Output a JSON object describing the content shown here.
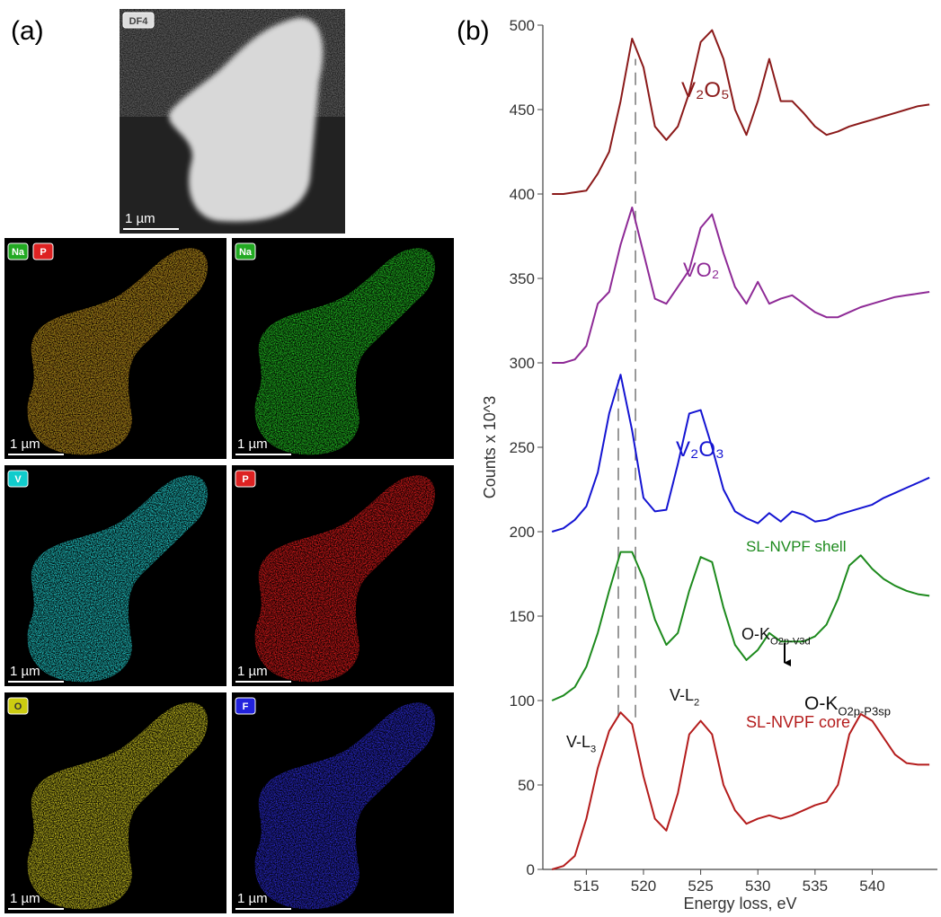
{
  "figure": {
    "panel_a_label": "(a)",
    "df_image": {
      "tag": "DF4",
      "scale": "1 µm"
    },
    "maps": [
      {
        "tags": [
          {
            "text": "Na",
            "color": "#22aa22"
          },
          {
            "text": "P",
            "color": "#dd2222"
          }
        ],
        "colors": [
          "#d03010",
          "#70c020"
        ],
        "scale": "1 µm"
      },
      {
        "tags": [
          {
            "text": "Na",
            "color": "#22aa22"
          }
        ],
        "colors": [
          "#22c022"
        ],
        "scale": "1 µm"
      },
      {
        "tags": [
          {
            "text": "V",
            "color": "#11cccc"
          }
        ],
        "colors": [
          "#22c8c8"
        ],
        "scale": "1 µm"
      },
      {
        "tags": [
          {
            "text": "P",
            "color": "#dd2222"
          }
        ],
        "colors": [
          "#dd1a1a"
        ],
        "scale": "1 µm"
      },
      {
        "tags": [
          {
            "text": "O",
            "color": "#cccc11"
          }
        ],
        "colors": [
          "#c8c020"
        ],
        "scale": "1 µm"
      },
      {
        "tags": [
          {
            "text": "F",
            "color": "#2222dd"
          }
        ],
        "colors": [
          "#2a2ad0"
        ],
        "scale": "1 µm"
      }
    ]
  },
  "chart_data": {
    "type": "line",
    "panel_label": "(b)",
    "x_label": "Energy loss, eV",
    "y_label": "Counts x 10^3",
    "xlim": [
      511.2,
      545.7
    ],
    "ylim": [
      0,
      500
    ],
    "xticks": [
      515,
      520,
      525,
      530,
      535,
      540
    ],
    "yticks": [
      0,
      50,
      100,
      150,
      200,
      250,
      300,
      350,
      400,
      450,
      500
    ],
    "x": [
      512,
      513,
      514,
      515,
      516,
      517,
      518,
      519,
      520,
      521,
      522,
      523,
      524,
      525,
      526,
      527,
      528,
      529,
      530,
      531,
      532,
      533,
      534,
      535,
      536,
      537,
      538,
      539,
      540,
      541,
      542,
      543,
      544,
      545
    ],
    "series": [
      {
        "name": "V₂O₅",
        "color": "#8b1a1a",
        "values": [
          400,
          400,
          401,
          402,
          412,
          425,
          455,
          492,
          475,
          440,
          432,
          440,
          460,
          490,
          497,
          480,
          450,
          435,
          455,
          480,
          455,
          455,
          448,
          440,
          435,
          437,
          440,
          442,
          444,
          446,
          448,
          450,
          452,
          453
        ]
      },
      {
        "name": "VO₂",
        "color": "#8e2a96",
        "values": [
          300,
          300,
          302,
          310,
          335,
          342,
          370,
          392,
          365,
          338,
          335,
          345,
          355,
          380,
          388,
          365,
          345,
          335,
          348,
          335,
          338,
          340,
          335,
          330,
          327,
          327,
          330,
          333,
          335,
          337,
          339,
          340,
          341,
          342
        ]
      },
      {
        "name": "V₂O₃",
        "color": "#1414d2",
        "values": [
          200,
          202,
          207,
          215,
          235,
          270,
          293,
          260,
          220,
          212,
          213,
          240,
          270,
          272,
          250,
          225,
          212,
          208,
          205,
          211,
          206,
          212,
          210,
          206,
          207,
          210,
          212,
          214,
          216,
          220,
          223,
          226,
          229,
          232
        ]
      },
      {
        "name": "SL-NVPF shell",
        "color": "#1d8a1d",
        "values": [
          100,
          103,
          108,
          120,
          140,
          165,
          188,
          188,
          172,
          148,
          133,
          140,
          165,
          185,
          182,
          155,
          133,
          124,
          130,
          140,
          135,
          135,
          135,
          138,
          145,
          160,
          180,
          186,
          178,
          172,
          168,
          165,
          163,
          162
        ]
      },
      {
        "name": "SL-NVPF core",
        "color": "#b41c1c",
        "values": [
          0,
          2,
          8,
          30,
          60,
          82,
          93,
          86,
          55,
          30,
          23,
          45,
          80,
          88,
          80,
          50,
          35,
          27,
          30,
          32,
          30,
          32,
          35,
          38,
          40,
          50,
          80,
          92,
          88,
          78,
          68,
          63,
          62,
          62
        ]
      }
    ],
    "reference_lines": [
      {
        "x": 517.8,
        "y_from": 90,
        "y_to": 290
      },
      {
        "x": 519.3,
        "y_from": 90,
        "y_to": 480
      }
    ],
    "annotations": [
      {
        "text": "V-L",
        "sub": "3"
      },
      {
        "text": "V-L",
        "sub": "2"
      },
      {
        "text": "O-K",
        "sub": "O2p-V3d"
      },
      {
        "text": "O-K",
        "sub": "O2p-P3sp"
      }
    ]
  }
}
